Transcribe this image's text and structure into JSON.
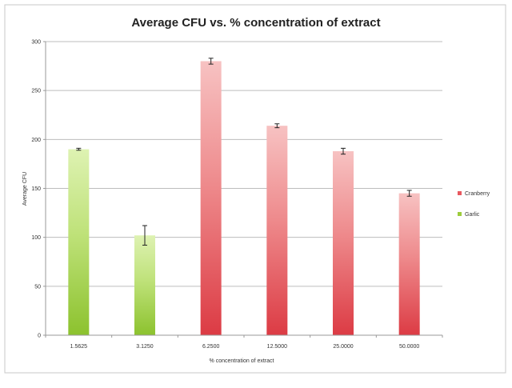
{
  "chart_data": {
    "type": "bar",
    "title": "Average CFU vs. % concentration of extract",
    "xlabel": "% concentration of extract",
    "ylabel": "Average CFU",
    "ylim": [
      0,
      300
    ],
    "yticks": [
      "0",
      "50",
      "100",
      "150",
      "200",
      "250",
      "300"
    ],
    "grid": true,
    "legend_position": "right",
    "categories": [
      "1.5625",
      "3.1250",
      "6.2500",
      "12.5000",
      "25.0000",
      "50.0000"
    ],
    "series": [
      {
        "name": "Cranberry",
        "color": "#e8585f",
        "values": [
          null,
          null,
          280,
          214,
          188,
          145
        ],
        "errors": [
          null,
          null,
          3,
          2,
          3,
          3
        ]
      },
      {
        "name": "Garlic",
        "color": "#9ccc3c",
        "values": [
          190,
          102,
          null,
          null,
          null,
          null
        ],
        "errors": [
          1,
          10,
          null,
          null,
          null,
          null
        ]
      }
    ]
  }
}
